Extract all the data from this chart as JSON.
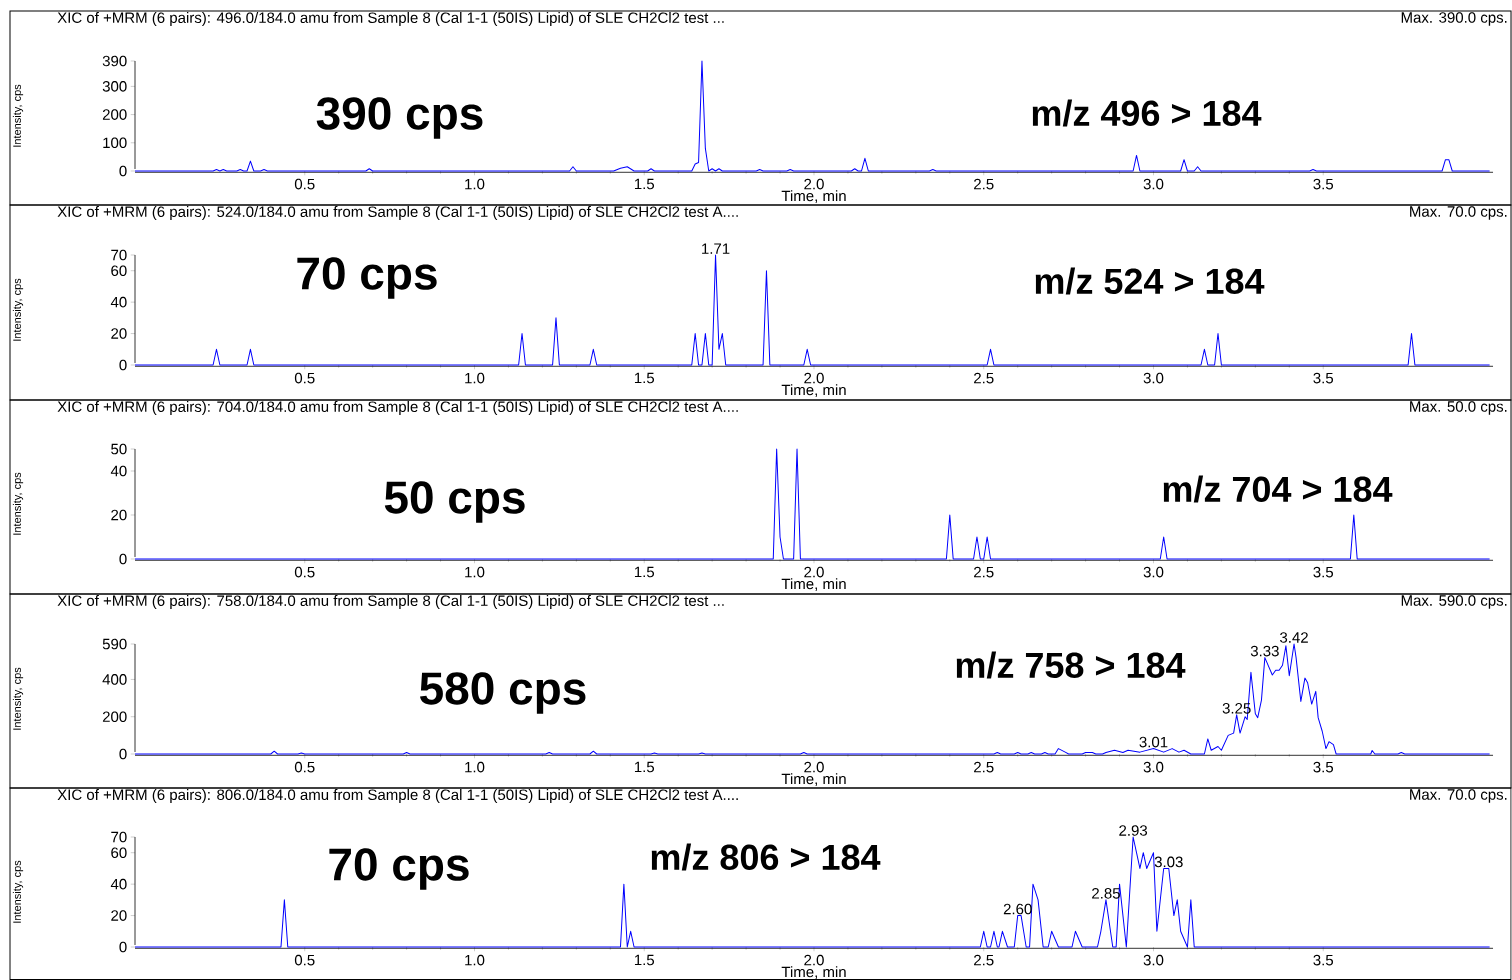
{
  "chart_data": [
    {
      "type": "line",
      "title": "XIC of +MRM (6 pairs): 496.0/184.0 amu from Sample 8 (Cal 1-1 (50IS) Lipid) of SLE CH2Cl2 test ...",
      "subtitle": "Max. 390.0 cps.",
      "xlabel": "Time, min",
      "ylabel": "Intensity, cps",
      "color": "#0000ff",
      "x": [
        0,
        0.23,
        0.24,
        0.25,
        0.26,
        0.27,
        0.3,
        0.31,
        0.32,
        0.33,
        0.34,
        0.35,
        0.37,
        0.38,
        0.39,
        0.68,
        0.69,
        0.7,
        1.28,
        1.29,
        1.3,
        1.41,
        1.43,
        1.45,
        1.47,
        1.51,
        1.52,
        1.53,
        1.64,
        1.65,
        1.66,
        1.67,
        1.68,
        1.69,
        1.7,
        1.71,
        1.72,
        1.73,
        1.83,
        1.84,
        1.85,
        1.92,
        1.93,
        1.94,
        2.11,
        2.12,
        2.13,
        2.14,
        2.15,
        2.16,
        2.34,
        2.35,
        2.36,
        2.94,
        2.95,
        2.96,
        3.08,
        3.09,
        3.1,
        3.12,
        3.13,
        3.14,
        3.46,
        3.47,
        3.48,
        3.85,
        3.86,
        3.87,
        3.88,
        3.99
      ],
      "values": [
        0,
        0,
        5,
        0,
        5,
        0,
        0,
        5,
        0,
        0,
        35,
        0,
        0,
        5,
        0,
        0,
        8,
        0,
        0,
        15,
        0,
        0,
        10,
        15,
        0,
        0,
        8,
        0,
        0,
        25,
        30,
        390,
        80,
        0,
        8,
        0,
        8,
        0,
        0,
        5,
        0,
        0,
        5,
        0,
        0,
        8,
        0,
        0,
        45,
        0,
        0,
        5,
        0,
        0,
        55,
        0,
        0,
        40,
        0,
        0,
        15,
        0,
        0,
        5,
        0,
        0,
        40,
        40,
        0,
        0
      ],
      "xlim": [
        0,
        4
      ],
      "ylim": [
        0,
        390
      ],
      "xticks": [
        {
          "value": 0.5,
          "label": "0.5"
        },
        {
          "value": 1.0,
          "label": "1.0"
        },
        {
          "value": 1.5,
          "label": "1.5"
        },
        {
          "value": 2.0,
          "label": "2.0"
        },
        {
          "value": 2.5,
          "label": "2.5"
        },
        {
          "value": 3.0,
          "label": "3.0"
        },
        {
          "value": 3.5,
          "label": "3.5"
        }
      ],
      "yticks": [
        0,
        100,
        200,
        300,
        390
      ],
      "annotations": [
        "390 cps",
        "m/z 496 > 184"
      ]
    },
    {
      "type": "line",
      "title": "XIC of +MRM (6 pairs): 524.0/184.0 amu from Sample 8 (Cal 1-1 (50IS) Lipid) of SLE CH2Cl2 test A....",
      "subtitle": "Max. 70.0 cps.",
      "xlabel": "Time, min",
      "ylabel": "Intensity, cps",
      "color": "#0000ff",
      "x": [
        0,
        0.23,
        0.24,
        0.25,
        0.33,
        0.34,
        0.35,
        1.13,
        1.14,
        1.15,
        1.23,
        1.24,
        1.25,
        1.34,
        1.35,
        1.36,
        1.64,
        1.65,
        1.66,
        1.67,
        1.68,
        1.69,
        1.7,
        1.71,
        1.72,
        1.73,
        1.74,
        1.85,
        1.86,
        1.87,
        1.97,
        1.98,
        1.99,
        2.51,
        2.52,
        2.53,
        3.14,
        3.15,
        3.16,
        3.18,
        3.19,
        3.2,
        3.75,
        3.76,
        3.77,
        3.99
      ],
      "values": [
        0,
        0,
        10,
        0,
        0,
        10,
        0,
        0,
        20,
        0,
        0,
        30,
        0,
        0,
        10,
        0,
        0,
        20,
        0,
        0,
        20,
        0,
        0,
        70,
        10,
        20,
        0,
        0,
        60,
        0,
        0,
        10,
        0,
        0,
        10,
        0,
        0,
        10,
        0,
        0,
        20,
        0,
        0,
        20,
        0,
        0
      ],
      "xlim": [
        0,
        4
      ],
      "ylim": [
        0,
        70
      ],
      "xticks": [
        {
          "value": 0.5,
          "label": "0.5"
        },
        {
          "value": 1.0,
          "label": "1.0"
        },
        {
          "value": 1.5,
          "label": "1.5"
        },
        {
          "value": 2.0,
          "label": "2.0"
        },
        {
          "value": 2.5,
          "label": "2.5"
        },
        {
          "value": 3.0,
          "label": "3.0"
        },
        {
          "value": 3.5,
          "label": "3.5"
        }
      ],
      "yticks": [
        0,
        20,
        40,
        60,
        70
      ],
      "annotations": [
        "70 cps",
        "m/z 524 > 184",
        {
          "text": "1.71",
          "x": 1.71,
          "y": 70
        }
      ]
    },
    {
      "type": "line",
      "title": "XIC of +MRM (6 pairs): 704.0/184.0 amu from Sample 8 (Cal 1-1 (50IS) Lipid) of SLE CH2Cl2 test A....",
      "subtitle": "Max. 50.0 cps.",
      "xlabel": "Time, min",
      "ylabel": "Intensity, cps",
      "color": "#0000ff",
      "x": [
        0,
        1.88,
        1.89,
        1.9,
        1.91,
        1.94,
        1.95,
        1.96,
        2.39,
        2.4,
        2.41,
        2.47,
        2.48,
        2.49,
        2.5,
        2.51,
        2.52,
        3.02,
        3.03,
        3.04,
        3.58,
        3.59,
        3.6,
        3.99
      ],
      "values": [
        0,
        0,
        50,
        10,
        0,
        0,
        50,
        0,
        0,
        20,
        0,
        0,
        10,
        0,
        0,
        10,
        0,
        0,
        10,
        0,
        0,
        20,
        0,
        0
      ],
      "xlim": [
        0,
        4
      ],
      "ylim": [
        0,
        50
      ],
      "xticks": [
        {
          "value": 0.5,
          "label": "0.5"
        },
        {
          "value": 1.0,
          "label": "1.0"
        },
        {
          "value": 1.5,
          "label": "1.5"
        },
        {
          "value": 2.0,
          "label": "2.0"
        },
        {
          "value": 2.5,
          "label": "2.5"
        },
        {
          "value": 3.0,
          "label": "3.0"
        },
        {
          "value": 3.5,
          "label": "3.5"
        }
      ],
      "yticks": [
        0,
        20,
        40,
        50
      ],
      "annotations": [
        "50 cps",
        "m/z 704 > 184"
      ]
    },
    {
      "type": "line",
      "title": "XIC of +MRM (6 pairs): 758.0/184.0 amu from Sample 8 (Cal 1-1 (50IS) Lipid) of SLE CH2Cl2 test ...",
      "subtitle": "Max. 590.0 cps.",
      "xlabel": "Time, min",
      "ylabel": "Intensity, cps",
      "color": "#0000ff",
      "x": [
        0,
        0.4,
        0.41,
        0.42,
        0.48,
        0.49,
        0.5,
        0.79,
        0.8,
        0.81,
        1.21,
        1.22,
        1.23,
        1.34,
        1.35,
        1.36,
        1.52,
        1.53,
        1.54,
        1.66,
        1.67,
        1.68,
        1.96,
        1.97,
        1.98,
        2.53,
        2.54,
        2.55,
        2.59,
        2.6,
        2.61,
        2.63,
        2.64,
        2.65,
        2.67,
        2.68,
        2.69,
        2.71,
        2.72,
        2.74,
        2.75,
        2.79,
        2.8,
        2.82,
        2.83,
        2.85,
        2.86,
        2.885,
        2.91,
        2.925,
        2.96,
        3.0,
        3.03,
        3.055,
        3.075,
        3.09,
        3.11,
        3.15,
        3.16,
        3.17,
        3.19,
        3.2,
        3.22,
        3.236,
        3.245,
        3.255,
        3.27,
        3.276,
        3.287,
        3.3,
        3.307,
        3.318,
        3.328,
        3.35,
        3.36,
        3.37,
        3.38,
        3.39,
        3.4,
        3.414,
        3.42,
        3.434,
        3.446,
        3.454,
        3.466,
        3.478,
        3.485,
        3.497,
        3.508,
        3.517,
        3.53,
        3.538,
        3.64,
        3.644,
        3.652,
        3.72,
        3.73,
        3.74,
        3.99
      ],
      "values": [
        0,
        0,
        15,
        0,
        0,
        5,
        0,
        0,
        8,
        0,
        0,
        8,
        0,
        0,
        15,
        0,
        0,
        5,
        0,
        0,
        5,
        0,
        0,
        8,
        0,
        0,
        8,
        0,
        0,
        8,
        0,
        0,
        8,
        0,
        0,
        8,
        0,
        0,
        29,
        10,
        0,
        0,
        8,
        8,
        0,
        0,
        8,
        20,
        8,
        20,
        10,
        29,
        10,
        29,
        10,
        20,
        0,
        0,
        81,
        20,
        40,
        20,
        100,
        112,
        210,
        112,
        200,
        185,
        438,
        216,
        195,
        289,
        517,
        424,
        449,
        449,
        476,
        580,
        420,
        590,
        517,
        282,
        407,
        382,
        268,
        336,
        195,
        122,
        29,
        66,
        50,
        0,
        0,
        19,
        0,
        0,
        8,
        0,
        0
      ],
      "xlim": [
        0,
        4
      ],
      "ylim": [
        0,
        590
      ],
      "xticks": [
        {
          "value": 0.5,
          "label": "0.5"
        },
        {
          "value": 1.0,
          "label": "1.0"
        },
        {
          "value": 1.5,
          "label": "1.5"
        },
        {
          "value": 2.0,
          "label": "2.0"
        },
        {
          "value": 2.5,
          "label": "2.5"
        },
        {
          "value": 3.0,
          "label": "3.0"
        },
        {
          "value": 3.5,
          "label": "3.5"
        }
      ],
      "yticks": [
        0,
        200,
        400,
        590
      ],
      "annotations": [
        "580 cps",
        "m/z 758 > 184",
        {
          "text": "3.01",
          "x": 3.0,
          "y": 29
        },
        {
          "text": "3.25",
          "x": 3.245,
          "y": 210
        },
        {
          "text": "3.33",
          "x": 3.328,
          "y": 517
        },
        {
          "text": "3.42",
          "x": 3.414,
          "y": 590
        }
      ]
    },
    {
      "type": "line",
      "title": "XIC of +MRM (6 pairs): 806.0/184.0 amu from Sample 8 (Cal 1-1 (50IS) Lipid) of SLE CH2Cl2 test A....",
      "subtitle": "Max. 70.0 cps.",
      "xlabel": "Time, min",
      "ylabel": "Intensity, cps",
      "color": "#0000ff",
      "x": [
        0,
        0.43,
        0.44,
        0.45,
        1.43,
        1.44,
        1.45,
        1.46,
        1.47,
        2.49,
        2.5,
        2.51,
        2.52,
        2.53,
        2.54,
        2.545,
        2.555,
        2.57,
        2.59,
        2.6,
        2.61,
        2.625,
        2.635,
        2.645,
        2.66,
        2.675,
        2.69,
        2.7,
        2.72,
        2.76,
        2.77,
        2.79,
        2.835,
        2.845,
        2.86,
        2.88,
        2.89,
        2.9,
        2.92,
        2.94,
        2.95,
        2.96,
        2.97,
        2.98,
        3.0,
        3.01,
        3.03,
        3.045,
        3.06,
        3.07,
        3.08,
        3.1,
        3.11,
        3.12,
        3.99
      ],
      "values": [
        0,
        0,
        30,
        0,
        0,
        40,
        0,
        10,
        0,
        0,
        10,
        0,
        0,
        10,
        0,
        0,
        10,
        0,
        0,
        20,
        20,
        0,
        0,
        40,
        30,
        0,
        0,
        10,
        0,
        0,
        10,
        0,
        0,
        10,
        30,
        0,
        0,
        40,
        0,
        70,
        60,
        50,
        60,
        50,
        60,
        10,
        50,
        50,
        20,
        30,
        10,
        0,
        30,
        0,
        0
      ],
      "xlim": [
        0,
        4
      ],
      "ylim": [
        0,
        70
      ],
      "xticks": [
        {
          "value": 0.5,
          "label": "0.5"
        },
        {
          "value": 1.0,
          "label": "1.0"
        },
        {
          "value": 1.5,
          "label": "1.5"
        },
        {
          "value": 2.0,
          "label": "2.0"
        },
        {
          "value": 2.5,
          "label": "2.5"
        },
        {
          "value": 3.0,
          "label": "3.0"
        },
        {
          "value": 3.5,
          "label": "3.5"
        }
      ],
      "yticks": [
        0,
        20,
        40,
        60,
        70
      ],
      "annotations": [
        "70 cps",
        "m/z 806 > 184",
        {
          "text": "2.60",
          "x": 2.6,
          "y": 20
        },
        {
          "text": "2.85",
          "x": 2.86,
          "y": 30
        },
        {
          "text": "2.93",
          "x": 2.94,
          "y": 70
        },
        {
          "text": "3.03",
          "x": 3.045,
          "y": 50
        }
      ]
    }
  ]
}
